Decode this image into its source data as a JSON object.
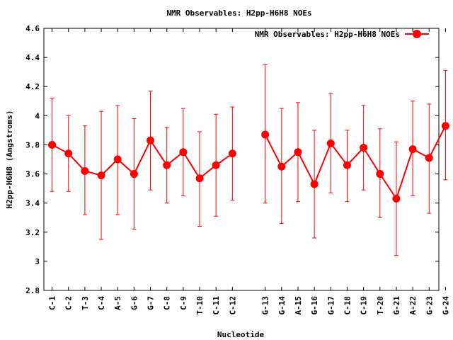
{
  "chart_data": {
    "type": "line",
    "title": "NMR Observables: H2pp-H6H8 NOEs",
    "xlabel": "Nucleotide",
    "ylabel": "H2pp-H6H8 (Angstroms)",
    "ylim": [
      2.8,
      4.6
    ],
    "yticks": [
      "2.8",
      "3",
      "3.2",
      "3.4",
      "3.6",
      "3.8",
      "4",
      "4.2",
      "4.4",
      "4.6"
    ],
    "legend_position": "top-right",
    "grid": false,
    "categories": [
      "C-1",
      "C-2",
      "T-3",
      "C-4",
      "A-5",
      "G-6",
      "G-7",
      "C-8",
      "C-9",
      "T-10",
      "C-11",
      "C-12",
      "G-13",
      "G-14",
      "A-15",
      "G-16",
      "G-17",
      "C-18",
      "C-19",
      "T-20",
      "G-21",
      "A-22",
      "G-23",
      "G-24"
    ],
    "series": [
      {
        "name": "NMR Observables: H2pp-H6H8 NOEs",
        "color": "#ff0000",
        "segments": [
          [
            0,
            11
          ],
          [
            12,
            23
          ]
        ],
        "values": [
          3.8,
          3.74,
          3.62,
          3.59,
          3.7,
          3.6,
          3.83,
          3.66,
          3.75,
          3.57,
          3.66,
          3.74,
          3.87,
          3.65,
          3.75,
          3.53,
          3.81,
          3.66,
          3.78,
          3.6,
          3.43,
          3.77,
          3.71,
          3.93
        ],
        "err_low": [
          3.48,
          3.48,
          3.32,
          3.15,
          3.32,
          3.22,
          3.49,
          3.4,
          3.45,
          3.24,
          3.31,
          3.42,
          3.4,
          3.26,
          3.41,
          3.16,
          3.47,
          3.41,
          3.49,
          3.3,
          3.04,
          3.45,
          3.33,
          3.56
        ],
        "err_high": [
          4.12,
          4.0,
          3.93,
          4.03,
          4.07,
          3.98,
          4.17,
          3.92,
          4.05,
          3.89,
          4.01,
          4.06,
          4.35,
          4.05,
          4.09,
          3.9,
          4.15,
          3.9,
          4.07,
          3.91,
          3.82,
          4.1,
          4.08,
          4.31
        ]
      }
    ]
  }
}
